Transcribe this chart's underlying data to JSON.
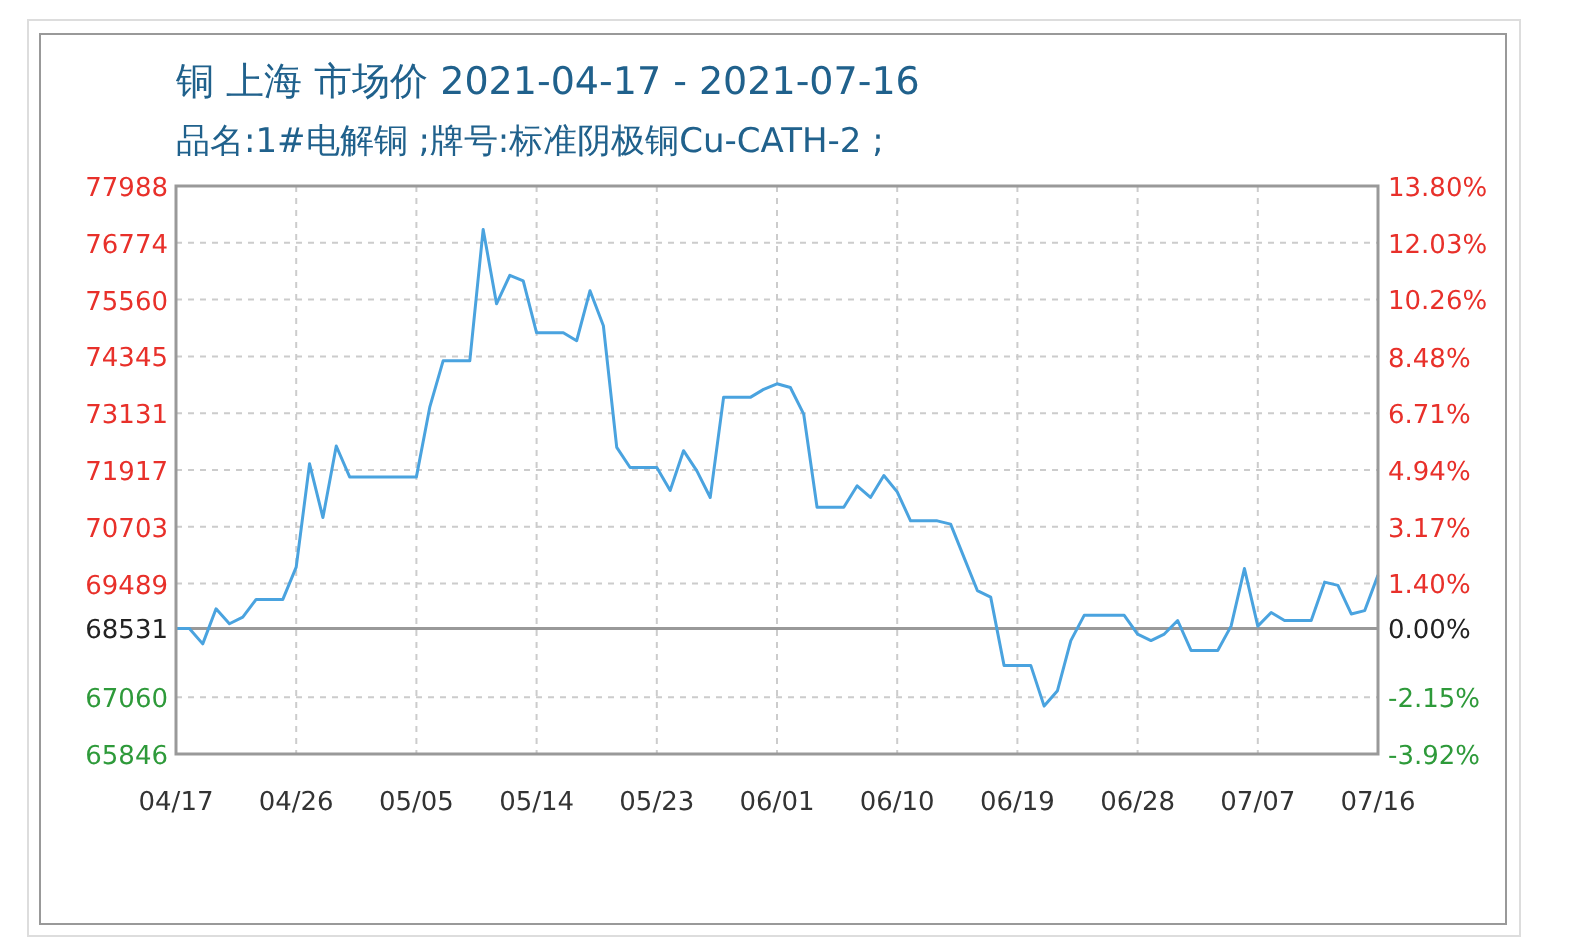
{
  "chart_data": {
    "type": "line",
    "title": "铜 上海 市场价 2021-04-17 - 2021-07-16",
    "subtitle": "品名:1#电解铜 ;牌号:标准阴极铜Cu-CATH-2 ;",
    "x": [
      "2021-04-17",
      "2021-04-18",
      "2021-04-19",
      "2021-04-20",
      "2021-04-21",
      "2021-04-22",
      "2021-04-23",
      "2021-04-24",
      "2021-04-25",
      "2021-04-26",
      "2021-04-27",
      "2021-04-28",
      "2021-04-29",
      "2021-04-30",
      "2021-05-01",
      "2021-05-02",
      "2021-05-03",
      "2021-05-04",
      "2021-05-05",
      "2021-05-06",
      "2021-05-07",
      "2021-05-08",
      "2021-05-09",
      "2021-05-10",
      "2021-05-11",
      "2021-05-12",
      "2021-05-13",
      "2021-05-14",
      "2021-05-15",
      "2021-05-16",
      "2021-05-17",
      "2021-05-18",
      "2021-05-19",
      "2021-05-20",
      "2021-05-21",
      "2021-05-22",
      "2021-05-23",
      "2021-05-24",
      "2021-05-25",
      "2021-05-26",
      "2021-05-27",
      "2021-05-28",
      "2021-05-29",
      "2021-05-30",
      "2021-05-31",
      "2021-06-01",
      "2021-06-02",
      "2021-06-03",
      "2021-06-04",
      "2021-06-05",
      "2021-06-06",
      "2021-06-07",
      "2021-06-08",
      "2021-06-09",
      "2021-06-10",
      "2021-06-11",
      "2021-06-12",
      "2021-06-13",
      "2021-06-14",
      "2021-06-15",
      "2021-06-16",
      "2021-06-17",
      "2021-06-18",
      "2021-06-19",
      "2021-06-20",
      "2021-06-21",
      "2021-06-22",
      "2021-06-23",
      "2021-06-24",
      "2021-06-25",
      "2021-06-26",
      "2021-06-27",
      "2021-06-28",
      "2021-06-29",
      "2021-06-30",
      "2021-07-01",
      "2021-07-02",
      "2021-07-03",
      "2021-07-04",
      "2021-07-05",
      "2021-07-06",
      "2021-07-07",
      "2021-07-08",
      "2021-07-09",
      "2021-07-10",
      "2021-07-11",
      "2021-07-12",
      "2021-07-13",
      "2021-07-14",
      "2021-07-15",
      "2021-07-16"
    ],
    "series": [
      {
        "color": "#4aa3df",
        "values": [
          68531,
          68531,
          68200,
          68950,
          68630,
          68770,
          69150,
          69150,
          69150,
          69840,
          72050,
          70900,
          72430,
          71770,
          71770,
          71770,
          71770,
          71770,
          71770,
          73260,
          74250,
          74250,
          74250,
          77060,
          75470,
          76080,
          75960,
          74850,
          74850,
          74850,
          74680,
          75750,
          75000,
          72400,
          71970,
          71970,
          71970,
          71480,
          72330,
          71900,
          71330,
          73470,
          73470,
          73470,
          73640,
          73760,
          73680,
          73110,
          71120,
          71120,
          71120,
          71580,
          71330,
          71800,
          71450,
          70830,
          70830,
          70830,
          70760,
          70050,
          69340,
          69200,
          67740,
          67740,
          67740,
          66870,
          67200,
          68270,
          68810,
          68810,
          68810,
          68810,
          68410,
          68270,
          68410,
          68700,
          68060,
          68060,
          68060,
          68580,
          69810,
          68580,
          68870,
          68700,
          68700,
          68700,
          69520,
          69450,
          68840,
          68910,
          69670
        ]
      }
    ],
    "xlim": [
      "2021-04-17",
      "2021-07-16"
    ],
    "xticks": [
      {
        "value": "2021-04-17",
        "label": "04/17"
      },
      {
        "value": "2021-04-26",
        "label": "04/26"
      },
      {
        "value": "2021-05-05",
        "label": "05/05"
      },
      {
        "value": "2021-05-14",
        "label": "05/14"
      },
      {
        "value": "2021-05-23",
        "label": "05/23"
      },
      {
        "value": "2021-06-01",
        "label": "06/01"
      },
      {
        "value": "2021-06-10",
        "label": "06/10"
      },
      {
        "value": "2021-06-19",
        "label": "06/19"
      },
      {
        "value": "2021-06-28",
        "label": "06/28"
      },
      {
        "value": "2021-07-07",
        "label": "07/07"
      },
      {
        "value": "2021-07-16",
        "label": "07/16"
      }
    ],
    "ylim": [
      65846,
      77988
    ],
    "yticks": [
      65846,
      67060,
      68531,
      69489,
      70703,
      71917,
      73131,
      74345,
      75560,
      76774,
      77988
    ],
    "y2lim": [
      -3.92,
      13.8
    ],
    "y2ticks": [
      {
        "value": -3.92,
        "label": "-3.92%"
      },
      {
        "value": -2.15,
        "label": "-2.15%"
      },
      {
        "value": 0,
        "label": "0.00%"
      },
      {
        "value": 1.4,
        "label": "1.40%"
      },
      {
        "value": 3.17,
        "label": "3.17%"
      },
      {
        "value": 4.94,
        "label": "4.94%"
      },
      {
        "value": 6.71,
        "label": "6.71%"
      },
      {
        "value": 8.48,
        "label": "8.48%"
      },
      {
        "value": 10.26,
        "label": "10.26%"
      },
      {
        "value": 12.03,
        "label": "12.03%"
      },
      {
        "value": 13.8,
        "label": "13.80%"
      }
    ],
    "ref_lines": [
      {
        "axis": "y",
        "value": 68531,
        "color": "#999999",
        "line_style": "solid"
      }
    ],
    "grid": true,
    "marker": "none",
    "line_style": "solid"
  }
}
